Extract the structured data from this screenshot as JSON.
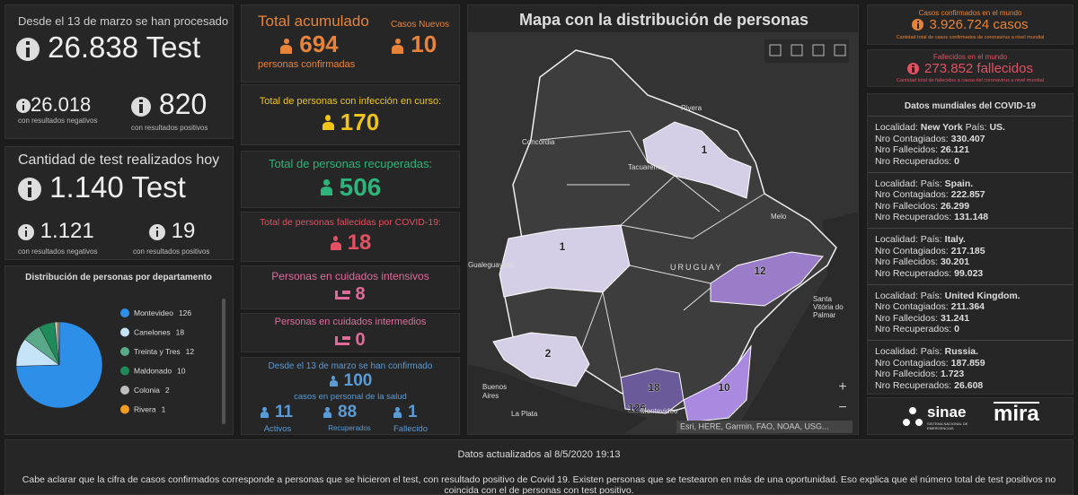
{
  "tests_total": {
    "heading": "Desde el 13 de marzo se han procesado",
    "value": "26.838 Test",
    "negative_value": "26.018",
    "negative_label": "con resultados negativos",
    "positive_value": "820",
    "positive_label": "con resultados positivos"
  },
  "tests_today": {
    "heading": "Cantidad de test realizados hoy",
    "value": "1.140 Test",
    "negative_value": "1.121",
    "negative_label": "con resultados negativos",
    "positive_value": "19",
    "positive_label": "con resultados positivos"
  },
  "department_chart": {
    "type": "pie",
    "title": "Distribución de personas por departamento",
    "categories": [
      "Montevideo",
      "Canelones",
      "Treinta y Tres",
      "Maldonado",
      "Colonia",
      "Rivera"
    ],
    "values": [
      126,
      18,
      12,
      10,
      2,
      1
    ],
    "colors": [
      "#2e8fe8",
      "#c6e4f7",
      "#5aa88a",
      "#1f8a5a",
      "#bdbdbd",
      "#f39c1f"
    ]
  },
  "accumulated": {
    "title": "Total acumulado",
    "value": "694",
    "label": "personas confirmadas",
    "new_title": "Casos Nuevos",
    "new_value": "10"
  },
  "active": {
    "title": "Total de personas con infección en curso:",
    "value": "170"
  },
  "recovered": {
    "title": "Total de personas recuperadas:",
    "value": "506"
  },
  "deceased": {
    "title": "Total de personas fallecidas por COVID-19:",
    "value": "18"
  },
  "icu": {
    "title": "Personas en cuidados intensivos",
    "value": "8"
  },
  "intermediate": {
    "title": "Personas en cuidados intermedios",
    "value": "0"
  },
  "health_staff": {
    "heading": "Desde el 13 de marzo se han confirmado",
    "value": "100",
    "label": "casos en personal de la salud",
    "items": [
      {
        "value": "11",
        "label": "Activos"
      },
      {
        "value": "88",
        "label": "Recuperados"
      },
      {
        "value": "1",
        "label": "Fallecido"
      }
    ]
  },
  "map": {
    "title": "Mapa con la distribución de personas",
    "region_labels": [
      "1",
      "1",
      "12",
      "2",
      "18",
      "10",
      "126"
    ],
    "place_labels": [
      "Rivera",
      "Concordia",
      "Tacuarembó",
      "Melo",
      "URUGUAY",
      "Gualeguaychú",
      "Santa Vitória do Palmar",
      "Buenos Aires",
      "La Plata",
      "Montevideo"
    ],
    "zoom_in": "+",
    "zoom_out": "−",
    "attribution": "Esri, HERE, Garmin, FAO, NOAA, USG..."
  },
  "world": {
    "confirmed_label": "Casos confirmados en el mundo",
    "confirmed_value": "3.926.724 casos",
    "confirmed_note": "Cantidad total de casos confirmados de coronavirus a nivel mundial",
    "deaths_label": "Fallecidos en el mundo",
    "deaths_value": "273.852 fallecidos",
    "deaths_note": "Cantidad total de fallecidos a causa del coronavirus a nivel mundial"
  },
  "world_data": {
    "title": "Datos mundiales del COVID-19",
    "entries": [
      {
        "location_label": "Localidad:",
        "location": "New York",
        "country_label": "País:",
        "country": "US.",
        "rows": [
          [
            "Nro Contagiados:",
            "330.407"
          ],
          [
            "Nro Fallecidos:",
            "26.121"
          ],
          [
            "Nro Recuperados:",
            "0"
          ]
        ]
      },
      {
        "location_label": "Localidad:",
        "location": "",
        "country_label": "País:",
        "country": "Spain.",
        "rows": [
          [
            "Nro Contagiados:",
            "222.857"
          ],
          [
            "Nro Fallecidos:",
            "26.299"
          ],
          [
            "Nro Recuperados:",
            "131.148"
          ]
        ]
      },
      {
        "location_label": "Localidad:",
        "location": "",
        "country_label": "País:",
        "country": "Italy.",
        "rows": [
          [
            "Nro Contagiados:",
            "217.185"
          ],
          [
            "Nro Fallecidos:",
            "30.201"
          ],
          [
            "Nro Recuperados:",
            "99.023"
          ]
        ]
      },
      {
        "location_label": "Localidad:",
        "location": "",
        "country_label": "País:",
        "country": "United Kingdom.",
        "rows": [
          [
            "Nro Contagiados:",
            "211.364"
          ],
          [
            "Nro Fallecidos:",
            "31.241"
          ],
          [
            "Nro Recuperados:",
            "0"
          ]
        ]
      },
      {
        "location_label": "Localidad:",
        "location": "",
        "country_label": "País:",
        "country": "Russia.",
        "rows": [
          [
            "Nro Contagiados:",
            "187.859"
          ],
          [
            "Nro Fallecidos:",
            "1.723"
          ],
          [
            "Nro Recuperados:",
            "26.608"
          ]
        ]
      }
    ]
  },
  "logos": {
    "sinae": "sinae",
    "sinae_sub": "SISTEMA NACIONAL DE EMERGENCIAS",
    "mira": "mira"
  },
  "footer": {
    "updated": "Datos actualizados al 8/5/2020 19:13",
    "note": "Cabe aclarar que la cifra de casos confirmados corresponde a personas que se hicieron el test, con resultado positivo de Covid 19. Existen personas que se testearon en más de una oportunidad. Eso explica que el número total de test positivos no coincida con el de personas con test positivo."
  }
}
